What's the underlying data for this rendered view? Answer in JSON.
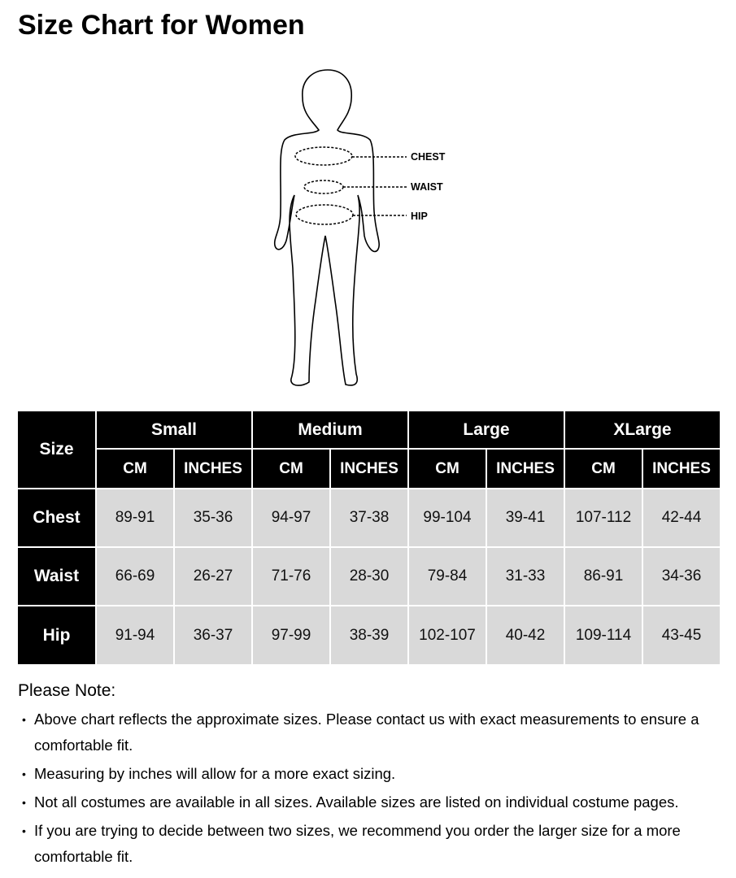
{
  "title": "Size Chart for Women",
  "figure": {
    "labels": [
      "CHEST",
      "WAIST",
      "HIP"
    ]
  },
  "table": {
    "corner": "Size",
    "groups": [
      "Small",
      "Medium",
      "Large",
      "XLarge"
    ],
    "units": [
      "CM",
      "INCHES"
    ],
    "rows": [
      {
        "label": "Chest",
        "values": [
          "89-91",
          "35-36",
          "94-97",
          "37-38",
          "99-104",
          "39-41",
          "107-112",
          "42-44"
        ]
      },
      {
        "label": "Waist",
        "values": [
          "66-69",
          "26-27",
          "71-76",
          "28-30",
          "79-84",
          "31-33",
          "86-91",
          "34-36"
        ]
      },
      {
        "label": "Hip",
        "values": [
          "91-94",
          "36-37",
          "97-99",
          "38-39",
          "102-107",
          "40-42",
          "109-114",
          "43-45"
        ]
      }
    ]
  },
  "notes": {
    "heading": "Please Note:",
    "items": [
      "Above chart reflects the approximate sizes. Please contact us with exact measurements to ensure a comfortable fit.",
      "Measuring by inches will allow for a more exact sizing.",
      "Not all costumes are available in all sizes. Available sizes are listed on individual costume pages.",
      "If you are trying to decide between two sizes, we recommend you order the larger size for a more comfortable fit."
    ]
  }
}
